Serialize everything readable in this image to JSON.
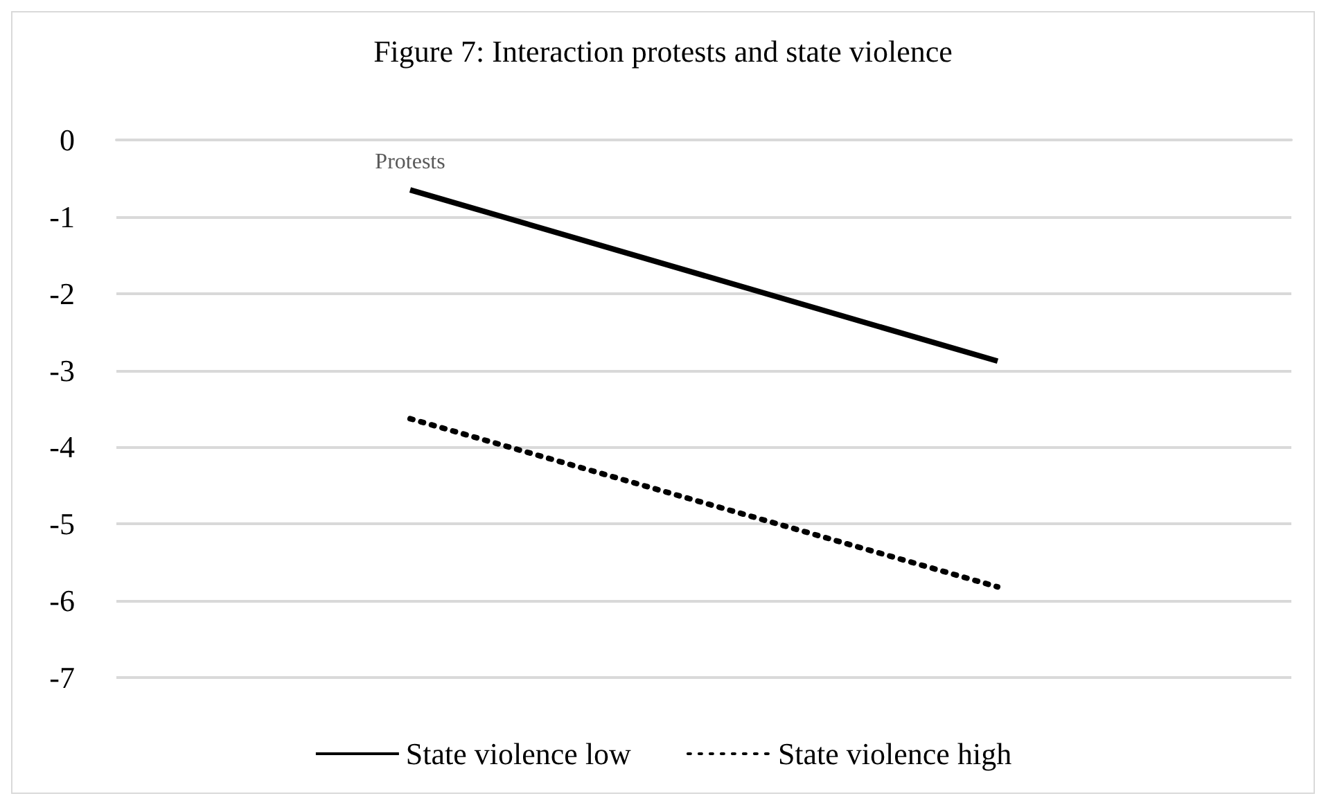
{
  "chart_data": {
    "type": "line",
    "title": "Figure 7: Interaction protests and state violence",
    "categories": [
      "Protests",
      null
    ],
    "series": [
      {
        "name": "State violence low",
        "color": "#000000",
        "values": [
          -0.65,
          -2.88
        ],
        "line_style": "solid"
      },
      {
        "name": "State violence high",
        "color": "#000000",
        "values": [
          -3.63,
          -5.82
        ],
        "line_style": "dotted"
      }
    ],
    "ylim": [
      -7,
      0
    ],
    "yticks": [
      0,
      -1,
      -2,
      -3,
      -4,
      -5,
      -6,
      -7
    ],
    "grid": "y",
    "legend": "bottom",
    "marker": "none"
  }
}
